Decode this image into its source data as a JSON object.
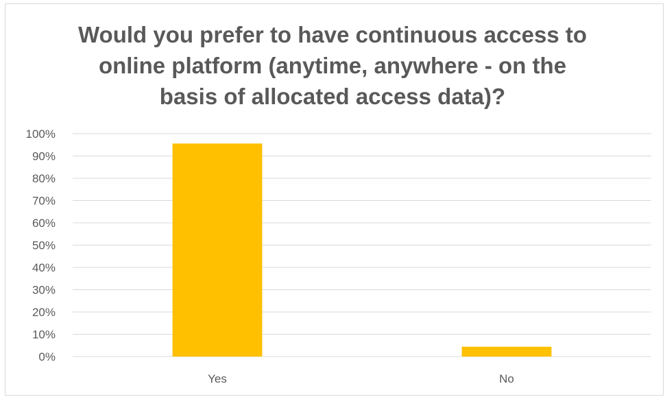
{
  "chart_data": {
    "type": "bar",
    "title": "Would you prefer to have continuous access to\nonline platform (anytime, anywhere - on the\nbasis of allocated access data)?",
    "categories": [
      "Yes",
      "No"
    ],
    "values": [
      95.6,
      4.4
    ],
    "ylim": [
      0,
      100
    ],
    "yticks": [
      0,
      10,
      20,
      30,
      40,
      50,
      60,
      70,
      80,
      90,
      100
    ],
    "ytick_labels": [
      "0%",
      "10%",
      "20%",
      "30%",
      "40%",
      "50%",
      "60%",
      "70%",
      "80%",
      "90%",
      "100%"
    ],
    "y_format": "percent",
    "xlabel": "",
    "ylabel": "",
    "grid": true,
    "legend": "none",
    "bar_color": "#FFC000",
    "gridline_color": "#D9D9D9",
    "text_color": "#595959"
  }
}
